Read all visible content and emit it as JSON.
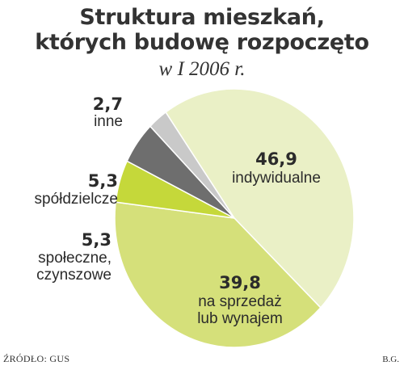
{
  "title_line1": "Struktura mieszkań,",
  "title_line2": "których budowę rozpoczęto",
  "subtitle": "w I 2006 r.",
  "source": "ŹRÓDŁO: GUS",
  "author": "B.G.",
  "chart_data": {
    "type": "pie",
    "title": "Struktura mieszkań, których budowę rozpoczęto w I 2006 r.",
    "slices": [
      {
        "value_label": "46,9",
        "value": 46.9,
        "name": "indywidualne",
        "color": "#eaf0c6"
      },
      {
        "value_label": "39,8",
        "value": 39.8,
        "name": "na sprzedaż lub wynajem",
        "name_line1": "na sprzedaż",
        "name_line2": "lub wynajem",
        "color": "#d5e07a"
      },
      {
        "value_label": "5,3",
        "value": 5.3,
        "name": "społeczne, czynszowe",
        "name_line1": "społeczne,",
        "name_line2": "czynszowe",
        "color": "#c5d83a"
      },
      {
        "value_label": "5,3",
        "value": 5.3,
        "name": "spółdzielcze",
        "color": "#6e6e6e"
      },
      {
        "value_label": "2,7",
        "value": 2.7,
        "name": "inne",
        "color": "#c9c9c9"
      }
    ]
  }
}
